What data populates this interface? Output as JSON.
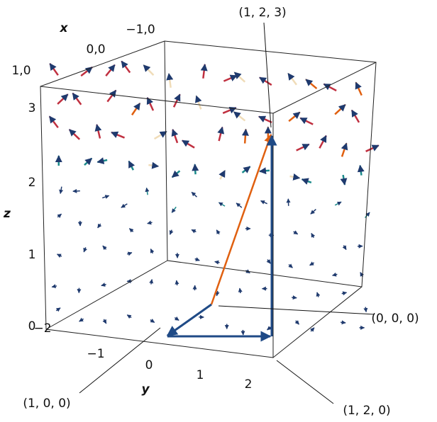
{
  "axes": {
    "x": {
      "label": "x",
      "ticks": [
        "1,0",
        "0,0",
        "−1,0"
      ]
    },
    "y": {
      "label": "y",
      "ticks": [
        "−2",
        "−1",
        "0",
        "1",
        "2"
      ]
    },
    "z": {
      "label": "z",
      "ticks": [
        "0",
        "1",
        "2",
        "3"
      ]
    }
  },
  "annotations": [
    "(1, 2, 3)",
    "(0, 0, 0)",
    "(1, 0, 0)",
    "(1, 2, 0)"
  ]
}
